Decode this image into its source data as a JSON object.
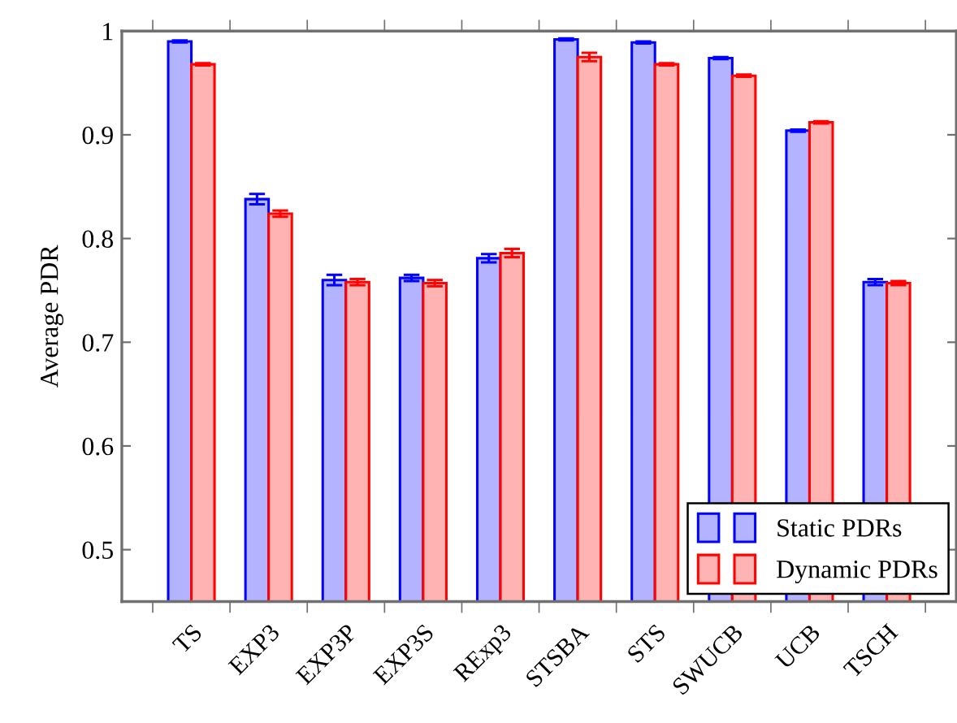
{
  "chart_data": {
    "type": "bar",
    "ylabel": "Average PDR",
    "categories": [
      "TS",
      "EXP3",
      "EXP3P",
      "EXP3S",
      "RExp3",
      "STSBA",
      "STS",
      "SWUCB",
      "UCB",
      "TSCH"
    ],
    "series": [
      {
        "name": "Static PDRs",
        "color": "#b3b3ff",
        "values": [
          0.99,
          0.838,
          0.76,
          0.762,
          0.781,
          0.992,
          0.989,
          0.974,
          0.904,
          0.758
        ],
        "errors": [
          0.001,
          0.005,
          0.005,
          0.003,
          0.004,
          0.001,
          0.001,
          0.001,
          0.001,
          0.003
        ]
      },
      {
        "name": "Dynamic PDRs",
        "color": "#ffb3b3",
        "values": [
          0.968,
          0.824,
          0.758,
          0.757,
          0.786,
          0.975,
          0.968,
          0.957,
          0.912,
          0.757
        ],
        "errors": [
          0.001,
          0.003,
          0.003,
          0.003,
          0.004,
          0.004,
          0.001,
          0.001,
          0.001,
          0.002
        ]
      }
    ],
    "ylim": [
      0.45,
      1
    ],
    "yticks": [
      0.5,
      0.6,
      0.7,
      0.8,
      0.9,
      1
    ],
    "grid": false,
    "legend": "bottom right"
  }
}
